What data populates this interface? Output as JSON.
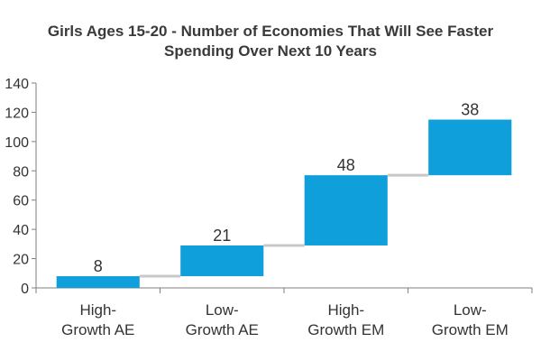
{
  "chart_data": {
    "type": "bar",
    "subtype": "waterfall",
    "title_lines": [
      "Girls Ages 15-20 - Number of Economies That Will See Faster",
      "Spending Over Next 10 Years"
    ],
    "categories": [
      [
        "High-",
        "Growth AE"
      ],
      [
        "Low-",
        "Growth AE"
      ],
      [
        "High-",
        "Growth EM"
      ],
      [
        "Low-",
        "Growth EM"
      ]
    ],
    "values": [
      8,
      21,
      48,
      38
    ],
    "value_labels": [
      "8",
      "21",
      "48",
      "38"
    ],
    "yticks": [
      0,
      20,
      40,
      60,
      80,
      100,
      120,
      140
    ],
    "ylim": [
      0,
      140
    ],
    "xlabel": "",
    "ylabel": "",
    "bar_color": "#0fa0dc",
    "connector_color": "#c8c8c8",
    "grid": false
  }
}
